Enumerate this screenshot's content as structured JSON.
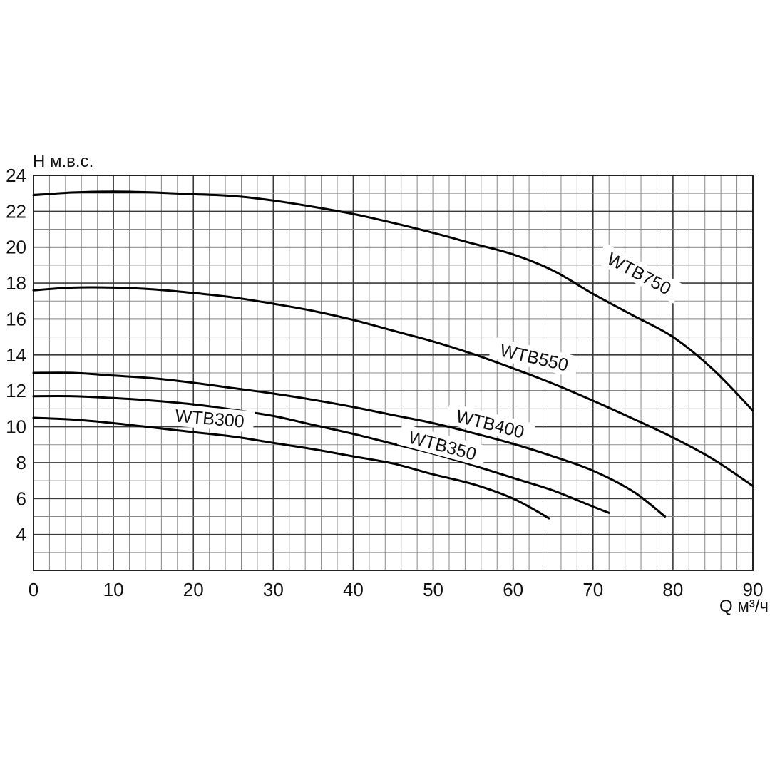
{
  "chart_data": {
    "type": "line",
    "title": "",
    "xlabel": "Q м³/ч",
    "ylabel": "H м.в.с.",
    "xlim": [
      0,
      90
    ],
    "ylim": [
      2,
      24
    ],
    "x_ticks": [
      "0",
      "10",
      "20",
      "30",
      "40",
      "50",
      "60",
      "70",
      "80",
      "90"
    ],
    "y_ticks": [
      "4",
      "6",
      "8",
      "10",
      "12",
      "14",
      "16",
      "18",
      "20",
      "22",
      "24"
    ],
    "grid": true,
    "series": [
      {
        "name": "WTB750",
        "points": [
          [
            0,
            22.9
          ],
          [
            5,
            23.05
          ],
          [
            10,
            23.1
          ],
          [
            15,
            23.05
          ],
          [
            20,
            22.95
          ],
          [
            25,
            22.85
          ],
          [
            30,
            22.6
          ],
          [
            35,
            22.25
          ],
          [
            40,
            21.85
          ],
          [
            45,
            21.35
          ],
          [
            50,
            20.8
          ],
          [
            55,
            20.2
          ],
          [
            60,
            19.6
          ],
          [
            65,
            18.7
          ],
          [
            70,
            17.4
          ],
          [
            75,
            16.2
          ],
          [
            80,
            15.0
          ],
          [
            85,
            13.2
          ],
          [
            90,
            10.9
          ]
        ]
      },
      {
        "name": "WTB550",
        "points": [
          [
            0,
            17.6
          ],
          [
            5,
            17.75
          ],
          [
            10,
            17.75
          ],
          [
            15,
            17.65
          ],
          [
            20,
            17.45
          ],
          [
            25,
            17.2
          ],
          [
            30,
            16.85
          ],
          [
            35,
            16.45
          ],
          [
            40,
            15.95
          ],
          [
            45,
            15.35
          ],
          [
            50,
            14.75
          ],
          [
            55,
            14.05
          ],
          [
            60,
            13.25
          ],
          [
            65,
            12.4
          ],
          [
            70,
            11.45
          ],
          [
            75,
            10.45
          ],
          [
            80,
            9.4
          ],
          [
            85,
            8.2
          ],
          [
            90,
            6.7
          ]
        ]
      },
      {
        "name": "WTB400",
        "points": [
          [
            0,
            13.0
          ],
          [
            5,
            13.0
          ],
          [
            10,
            12.85
          ],
          [
            15,
            12.7
          ],
          [
            20,
            12.45
          ],
          [
            25,
            12.15
          ],
          [
            30,
            11.85
          ],
          [
            35,
            11.5
          ],
          [
            40,
            11.1
          ],
          [
            45,
            10.65
          ],
          [
            50,
            10.2
          ],
          [
            55,
            9.65
          ],
          [
            60,
            9.05
          ],
          [
            65,
            8.35
          ],
          [
            70,
            7.55
          ],
          [
            75,
            6.4
          ],
          [
            79,
            5.0
          ]
        ]
      },
      {
        "name": "WTB350",
        "points": [
          [
            0,
            11.7
          ],
          [
            5,
            11.7
          ],
          [
            10,
            11.6
          ],
          [
            15,
            11.45
          ],
          [
            20,
            11.25
          ],
          [
            25,
            10.95
          ],
          [
            30,
            10.6
          ],
          [
            35,
            10.1
          ],
          [
            40,
            9.6
          ],
          [
            45,
            9.05
          ],
          [
            50,
            8.5
          ],
          [
            55,
            7.85
          ],
          [
            60,
            7.15
          ],
          [
            65,
            6.45
          ],
          [
            70,
            5.55
          ],
          [
            72,
            5.2
          ]
        ]
      },
      {
        "name": "WTB300",
        "points": [
          [
            0,
            10.5
          ],
          [
            5,
            10.4
          ],
          [
            10,
            10.2
          ],
          [
            15,
            9.95
          ],
          [
            20,
            9.7
          ],
          [
            25,
            9.45
          ],
          [
            30,
            9.1
          ],
          [
            35,
            8.75
          ],
          [
            40,
            8.35
          ],
          [
            45,
            7.95
          ],
          [
            50,
            7.35
          ],
          [
            55,
            6.8
          ],
          [
            60,
            6.0
          ],
          [
            64.5,
            4.9
          ]
        ]
      }
    ],
    "labels": [
      {
        "series": "WTB750",
        "text": "WTB750",
        "x": 75.5,
        "y": 18.3,
        "angle": 28
      },
      {
        "series": "WTB550",
        "text": "WTB550",
        "x": 62.5,
        "y": 13.6,
        "angle": 13
      },
      {
        "series": "WTB400",
        "text": "WTB400",
        "x": 57.0,
        "y": 9.9,
        "angle": 14
      },
      {
        "series": "WTB350",
        "text": "WTB350",
        "x": 51.0,
        "y": 8.7,
        "angle": 15
      },
      {
        "series": "WTB300",
        "text": "WTB300",
        "x": 22.0,
        "y": 10.2,
        "angle": 5
      }
    ]
  }
}
